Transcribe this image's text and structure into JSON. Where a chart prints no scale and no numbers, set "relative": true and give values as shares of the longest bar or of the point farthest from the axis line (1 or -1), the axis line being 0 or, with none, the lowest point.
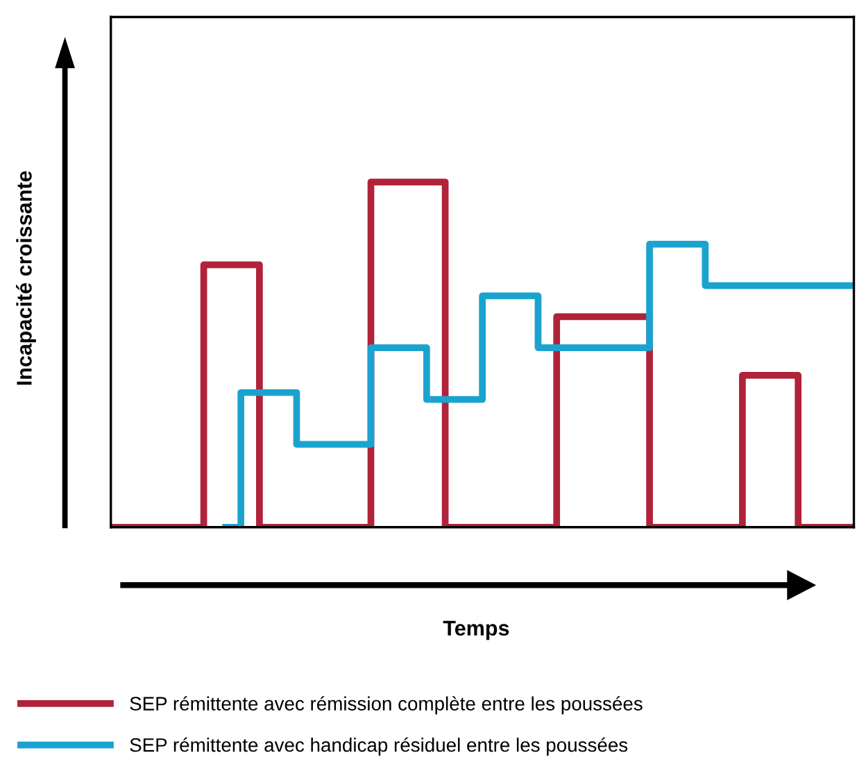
{
  "chart_data": {
    "type": "step",
    "relative": true,
    "xlabel": "Temps",
    "ylabel": "Incapacité croissante",
    "legend": "bottom",
    "categories": [
      null,
      null,
      null,
      null,
      null,
      null,
      null,
      null,
      null,
      null,
      null,
      null,
      null,
      null,
      null,
      null,
      null,
      null,
      null,
      null,
      null,
      null,
      null,
      null,
      null,
      null,
      null,
      null,
      null,
      null,
      null,
      null,
      null,
      null,
      null,
      null,
      null,
      null,
      null,
      null,
      null
    ],
    "series": [
      {
        "name": "SEP rémittente avec rémission complète entre les poussées",
        "color": "#b0233a",
        "values": [
          0,
          0,
          0,
          0,
          0,
          0.76,
          0.76,
          0.76,
          0,
          0,
          0,
          0,
          0,
          0,
          1,
          1,
          1,
          1,
          0,
          0,
          0,
          0,
          0,
          0,
          0.61,
          0.61,
          0.61,
          0.61,
          0.61,
          0,
          0,
          0,
          0,
          0,
          0.44,
          0.44,
          0.44,
          0,
          0,
          0,
          0
        ]
      },
      {
        "name": "SEP rémittente avec handicap résiduel entre les poussées",
        "color": "#1ba3d0",
        "values": [
          null,
          null,
          null,
          null,
          null,
          null,
          0,
          0.39,
          0.39,
          0.39,
          0.24,
          0.24,
          0.24,
          0.24,
          0.52,
          0.52,
          0.52,
          0.37,
          0.37,
          0.37,
          0.67,
          0.67,
          0.67,
          0.52,
          0.52,
          0.52,
          0.52,
          0.52,
          0.52,
          0.82,
          0.82,
          0.82,
          0.7,
          0.7,
          0.7,
          0.7,
          0.7,
          0.7,
          0.7,
          0.7,
          0.7
        ]
      }
    ]
  }
}
